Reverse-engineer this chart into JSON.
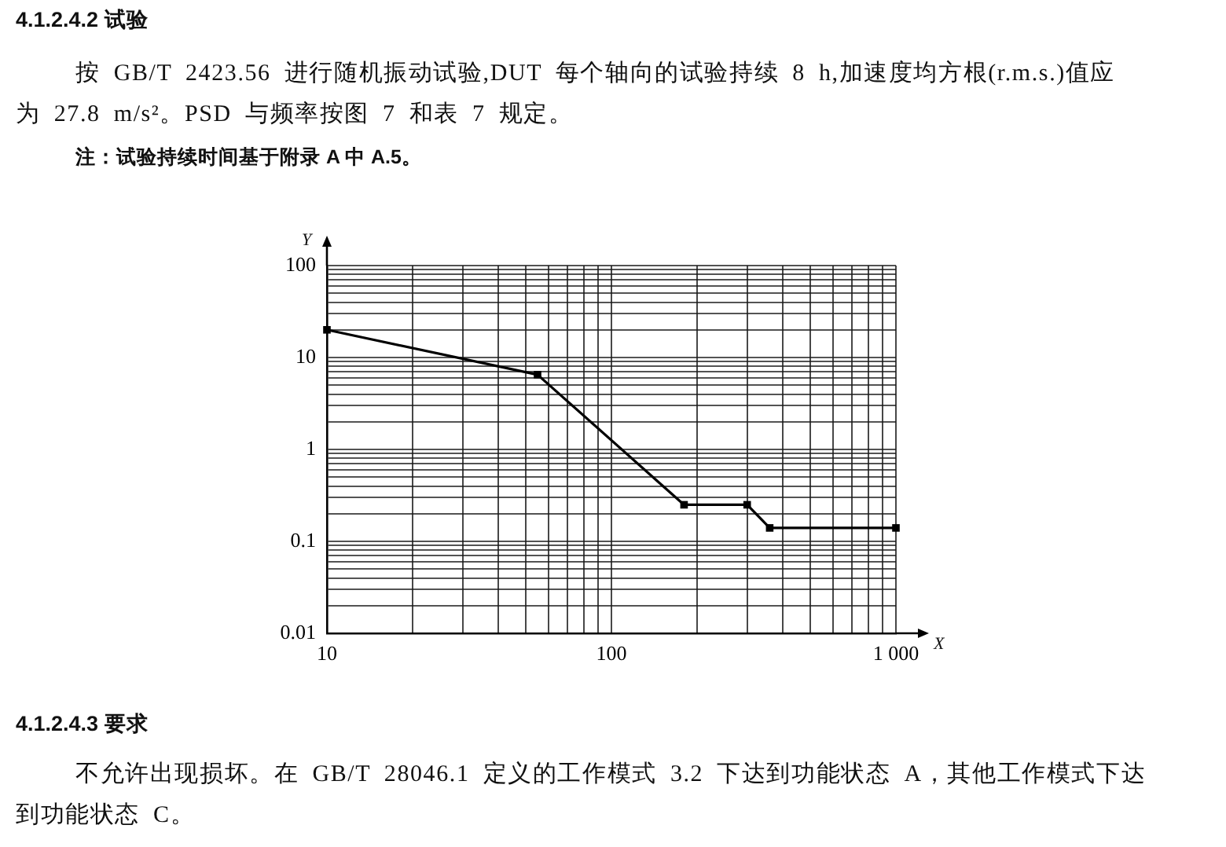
{
  "chart_data": {
    "type": "line",
    "title": "4.1.2.4.2 试验",
    "subtitle": "按 GB/T 2423.56 进行随机振动试验,DUT 每个轴向的试验持续 8 h,加速度均方根(r.m.s.)值应为 27.8 m/s²。PSD 与频率按图 7 和表 7 规定。",
    "xlabel": "X",
    "ylabel": "Y",
    "x": [
      10,
      55,
      180,
      300,
      360,
      1000
    ],
    "series": [
      {
        "color": "#000000",
        "values": [
          20,
          6.5,
          0.25,
          0.25,
          0.14,
          0.14
        ]
      }
    ],
    "xlim": [
      10,
      1000
    ],
    "ylim": [
      0.01,
      100
    ],
    "xticks": [
      10,
      {
        "value": 20,
        "label": null
      },
      {
        "value": 30,
        "label": null
      },
      {
        "value": 40,
        "label": null
      },
      {
        "value": 50,
        "label": null
      },
      {
        "value": 60,
        "label": null
      },
      {
        "value": 70,
        "label": null
      },
      {
        "value": 80,
        "label": null
      },
      {
        "value": 90,
        "label": null
      },
      100,
      {
        "value": 200,
        "label": null
      },
      {
        "value": 300,
        "label": null
      },
      {
        "value": 400,
        "label": null
      },
      {
        "value": 500,
        "label": null
      },
      {
        "value": 600,
        "label": null
      },
      {
        "value": 700,
        "label": null
      },
      {
        "value": 800,
        "label": null
      },
      {
        "value": 900,
        "label": null
      },
      {
        "value": 1000,
        "label": "1 000"
      }
    ],
    "yticks": [
      0.01,
      {
        "value": 0.02,
        "label": null
      },
      {
        "value": 0.03,
        "label": null
      },
      {
        "value": 0.04,
        "label": null
      },
      {
        "value": 0.05,
        "label": null
      },
      {
        "value": 0.06,
        "label": null
      },
      {
        "value": 0.07,
        "label": null
      },
      {
        "value": 0.08,
        "label": null
      },
      {
        "value": 0.09,
        "label": null
      },
      0.1,
      {
        "value": 0.2,
        "label": null
      },
      {
        "value": 0.3,
        "label": null
      },
      {
        "value": 0.4,
        "label": null
      },
      {
        "value": 0.5,
        "label": null
      },
      {
        "value": 0.6,
        "label": null
      },
      {
        "value": 0.7,
        "label": null
      },
      {
        "value": 0.8,
        "label": null
      },
      {
        "value": 0.9,
        "label": null
      },
      1,
      {
        "value": 2,
        "label": null
      },
      {
        "value": 3,
        "label": null
      },
      {
        "value": 4,
        "label": null
      },
      {
        "value": 5,
        "label": null
      },
      {
        "value": 6,
        "label": null
      },
      {
        "value": 7,
        "label": null
      },
      {
        "value": 8,
        "label": null
      },
      {
        "value": 9,
        "label": null
      },
      10,
      {
        "value": 20,
        "label": null
      },
      {
        "value": 30,
        "label": null
      },
      {
        "value": 40,
        "label": null
      },
      {
        "value": 50,
        "label": null
      },
      {
        "value": 60,
        "label": null
      },
      {
        "value": 70,
        "label": null
      },
      {
        "value": 80,
        "label": null
      },
      {
        "value": 90,
        "label": null
      },
      100
    ],
    "log": "xy",
    "grid": true,
    "legend": false,
    "marker": "square",
    "line_style": "solid",
    "annotations": [
      "注：试验持续时间基于附录 A 中 A.5。",
      "4.1.2.4.3 要求",
      "不允许出现损坏。在 GB/T 28046.1 定义的工作模式 3.2 下达到功能状态 A，其他工作模式下达到功能状态 C。"
    ]
  }
}
